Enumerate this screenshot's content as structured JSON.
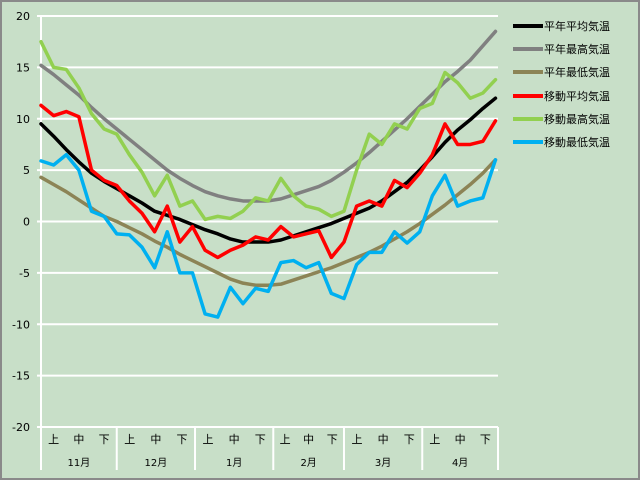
{
  "chart_data": {
    "type": "line",
    "title": "",
    "xlabel": "",
    "ylabel": "",
    "ylim": [
      -20,
      20
    ],
    "yticks": [
      "20",
      "15",
      "10",
      "5",
      "0",
      "-5",
      "-10",
      "-15",
      "-20"
    ],
    "grid": true,
    "legend_position": "right",
    "months": [
      "11月",
      "12月",
      "1月",
      "2月",
      "3月",
      "4月"
    ],
    "month_days": [
      30,
      31,
      31,
      28,
      31,
      30
    ],
    "decades": [
      "上",
      "中",
      "下"
    ],
    "x_day_step": 5,
    "series": [
      {
        "name": "平年平均気温",
        "color": "#000000",
        "values": [
          9.5,
          8.3,
          7.0,
          5.8,
          4.7,
          3.9,
          3.2,
          2.5,
          1.8,
          1.0,
          0.6,
          0.2,
          -0.3,
          -0.8,
          -1.2,
          -1.7,
          -2.0,
          -2.0,
          -2.0,
          -1.8,
          -1.4,
          -1.0,
          -0.6,
          -0.2,
          0.3,
          0.8,
          1.3,
          2.0,
          2.9,
          3.8,
          5.0,
          6.3,
          7.7,
          8.9,
          9.9,
          11.0,
          12.0
        ]
      },
      {
        "name": "平年最高気温",
        "color": "#808080",
        "values": [
          15.2,
          14.3,
          13.3,
          12.3,
          11.1,
          10.0,
          9.0,
          8.0,
          7.0,
          6.0,
          5.0,
          4.2,
          3.5,
          2.9,
          2.5,
          2.2,
          2.0,
          2.0,
          2.0,
          2.2,
          2.6,
          3.0,
          3.4,
          4.0,
          4.8,
          5.7,
          6.7,
          7.8,
          8.9,
          10.0,
          11.2,
          12.4,
          13.6,
          14.6,
          15.7,
          17.1,
          18.5
        ]
      },
      {
        "name": "平年最低気温",
        "color": "#8c8456",
        "values": [
          4.3,
          3.6,
          2.9,
          2.1,
          1.3,
          0.5,
          0.0,
          -0.6,
          -1.2,
          -1.9,
          -2.5,
          -3.2,
          -3.8,
          -4.4,
          -5.0,
          -5.6,
          -6.0,
          -6.2,
          -6.2,
          -6.1,
          -5.7,
          -5.3,
          -4.9,
          -4.5,
          -4.0,
          -3.5,
          -3.0,
          -2.4,
          -1.7,
          -1.0,
          -0.2,
          0.7,
          1.6,
          2.6,
          3.6,
          4.7,
          6.0
        ]
      },
      {
        "name": "移動平均気温",
        "color": "#ff0000",
        "values": [
          11.3,
          10.3,
          10.7,
          10.2,
          5.0,
          4.0,
          3.5,
          2.0,
          0.8,
          -1.0,
          1.5,
          -2.0,
          -0.5,
          -2.8,
          -3.5,
          -2.8,
          -2.3,
          -1.5,
          -1.8,
          -0.5,
          -1.5,
          -1.2,
          -0.9,
          -3.5,
          -2.0,
          1.5,
          2.0,
          1.5,
          4.0,
          3.3,
          4.7,
          6.5,
          9.5,
          7.5,
          7.5,
          7.8,
          9.8
        ]
      },
      {
        "name": "移動最高気温",
        "color": "#92d050",
        "values": [
          17.5,
          15.0,
          14.8,
          13.0,
          10.5,
          9.0,
          8.5,
          6.5,
          4.8,
          2.5,
          4.5,
          1.5,
          2.0,
          0.2,
          0.5,
          0.3,
          1.0,
          2.3,
          2.0,
          4.2,
          2.5,
          1.5,
          1.2,
          0.5,
          1.0,
          5.0,
          8.5,
          7.5,
          9.5,
          9.0,
          11.0,
          11.5,
          14.5,
          13.5,
          12.0,
          12.5,
          13.8
        ]
      },
      {
        "name": "移動最低気温",
        "color": "#00b0f0",
        "values": [
          5.9,
          5.5,
          6.5,
          5.0,
          1.0,
          0.5,
          -1.2,
          -1.3,
          -2.5,
          -4.5,
          -1.0,
          -5.0,
          -5.0,
          -9.0,
          -9.3,
          -6.4,
          -8.0,
          -6.5,
          -6.8,
          -4.0,
          -3.8,
          -4.5,
          -4.0,
          -7.0,
          -7.5,
          -4.2,
          -3.0,
          -3.0,
          -1.0,
          -2.1,
          -1.0,
          2.5,
          4.5,
          1.5,
          2.0,
          2.3,
          6.0
        ]
      }
    ]
  }
}
